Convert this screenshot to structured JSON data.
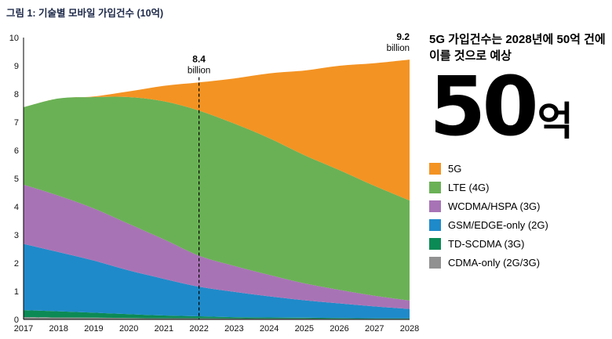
{
  "right_panel": {
    "headline": "5G 가입건수는 2028년에 50억 건에 이를 것으로 예상",
    "big_number": "50",
    "big_unit": "억"
  },
  "chart_data": {
    "type": "area",
    "stacked": true,
    "title": "그림 1: 기술별 모바일 가입건수 (10억)",
    "xlabel": "",
    "ylabel": "",
    "x": [
      2017,
      2018,
      2019,
      2020,
      2021,
      2022,
      2023,
      2024,
      2025,
      2026,
      2027,
      2028
    ],
    "ylim": [
      0,
      10
    ],
    "y_ticks": [
      0,
      1,
      2,
      3,
      4,
      5,
      6,
      7,
      8,
      9,
      10
    ],
    "grid": false,
    "legend_position": "right",
    "series_order": "bottom-to-top",
    "series": [
      {
        "name": "CDMA-only (2G/3G)",
        "color": "#919191",
        "values": [
          0.08,
          0.07,
          0.06,
          0.05,
          0.04,
          0.04,
          0.03,
          0.03,
          0.03,
          0.02,
          0.02,
          0.02
        ]
      },
      {
        "name": "TD-SCDMA (3G)",
        "color": "#0c8a55",
        "values": [
          0.25,
          0.22,
          0.18,
          0.14,
          0.1,
          0.07,
          0.05,
          0.04,
          0.03,
          0.03,
          0.02,
          0.02
        ]
      },
      {
        "name": "GSM/EDGE-only (2G)",
        "color": "#1f8ac9",
        "values": [
          2.35,
          2.1,
          1.85,
          1.55,
          1.3,
          1.05,
          0.9,
          0.75,
          0.62,
          0.52,
          0.42,
          0.33
        ]
      },
      {
        "name": "WCDMA/HSPA (3G)",
        "color": "#a873b5",
        "values": [
          2.1,
          2.0,
          1.85,
          1.65,
          1.4,
          1.1,
          0.92,
          0.76,
          0.6,
          0.48,
          0.38,
          0.3
        ]
      },
      {
        "name": "LTE (4G)",
        "color": "#6ab155",
        "values": [
          2.75,
          3.45,
          3.95,
          4.5,
          4.9,
          5.15,
          5.05,
          4.85,
          4.55,
          4.25,
          3.9,
          3.55
        ]
      },
      {
        "name": "5G",
        "color": "#f39323",
        "values": [
          0,
          0,
          0.02,
          0.2,
          0.55,
          1.0,
          1.6,
          2.3,
          3.0,
          3.7,
          4.35,
          5.0
        ]
      }
    ],
    "annotations": [
      {
        "year": 2022,
        "value": 8.4,
        "label": "8.4",
        "sublabel": "billion",
        "dashed": true,
        "anchor": "middle"
      },
      {
        "year": 2028,
        "value": 9.2,
        "label": "9.2",
        "sublabel": "billion",
        "dashed": false,
        "anchor": "end"
      }
    ]
  }
}
